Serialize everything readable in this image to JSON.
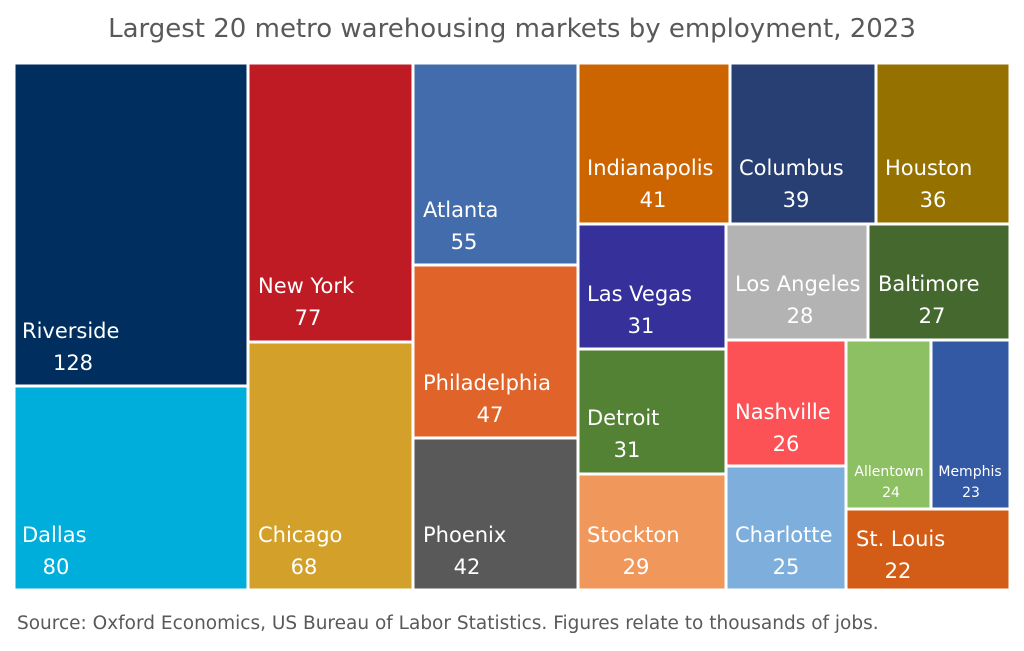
{
  "chart_data": {
    "type": "treemap",
    "title": "Largest 20 metro warehousing markets by employment, 2023",
    "source": "Source: Oxford Economics, US Bureau of Labor Statistics. Figures relate to thousands of jobs.",
    "items": [
      {
        "label": "Riverside",
        "value": "128",
        "color": "#002f5f"
      },
      {
        "label": "Dallas",
        "value": "80",
        "color": "#00aedb"
      },
      {
        "label": "New York",
        "value": "77",
        "color": "#be1b24"
      },
      {
        "label": "Chicago",
        "value": "68",
        "color": "#d3a02a"
      },
      {
        "label": "Atlanta",
        "value": "55",
        "color": "#426cab"
      },
      {
        "label": "Philadelphia",
        "value": "47",
        "color": "#e06329"
      },
      {
        "label": "Phoenix",
        "value": "42",
        "color": "#595959"
      },
      {
        "label": "Indianapolis",
        "value": "41",
        "color": "#cc6500"
      },
      {
        "label": "Columbus",
        "value": "39",
        "color": "#273f73"
      },
      {
        "label": "Houston",
        "value": "36",
        "color": "#957200"
      },
      {
        "label": "Las Vegas",
        "value": "31",
        "color": "#35309a"
      },
      {
        "label": "Los Angeles",
        "value": "28",
        "color": "#b3b3b3"
      },
      {
        "label": "Baltimore",
        "value": "27",
        "color": "#44682d"
      },
      {
        "label": "Detroit",
        "value": "31",
        "color": "#538234"
      },
      {
        "label": "Nashville",
        "value": "26",
        "color": "#fd5255"
      },
      {
        "label": "Allentown",
        "value": "24",
        "color": "#8cc063"
      },
      {
        "label": "Memphis",
        "value": "23",
        "color": "#3359a5"
      },
      {
        "label": "Stockton",
        "value": "29",
        "color": "#f0975b"
      },
      {
        "label": "Charlotte",
        "value": "25",
        "color": "#7daedc"
      },
      {
        "label": "St. Louis",
        "value": "22",
        "color": "#d35d16"
      }
    ]
  }
}
